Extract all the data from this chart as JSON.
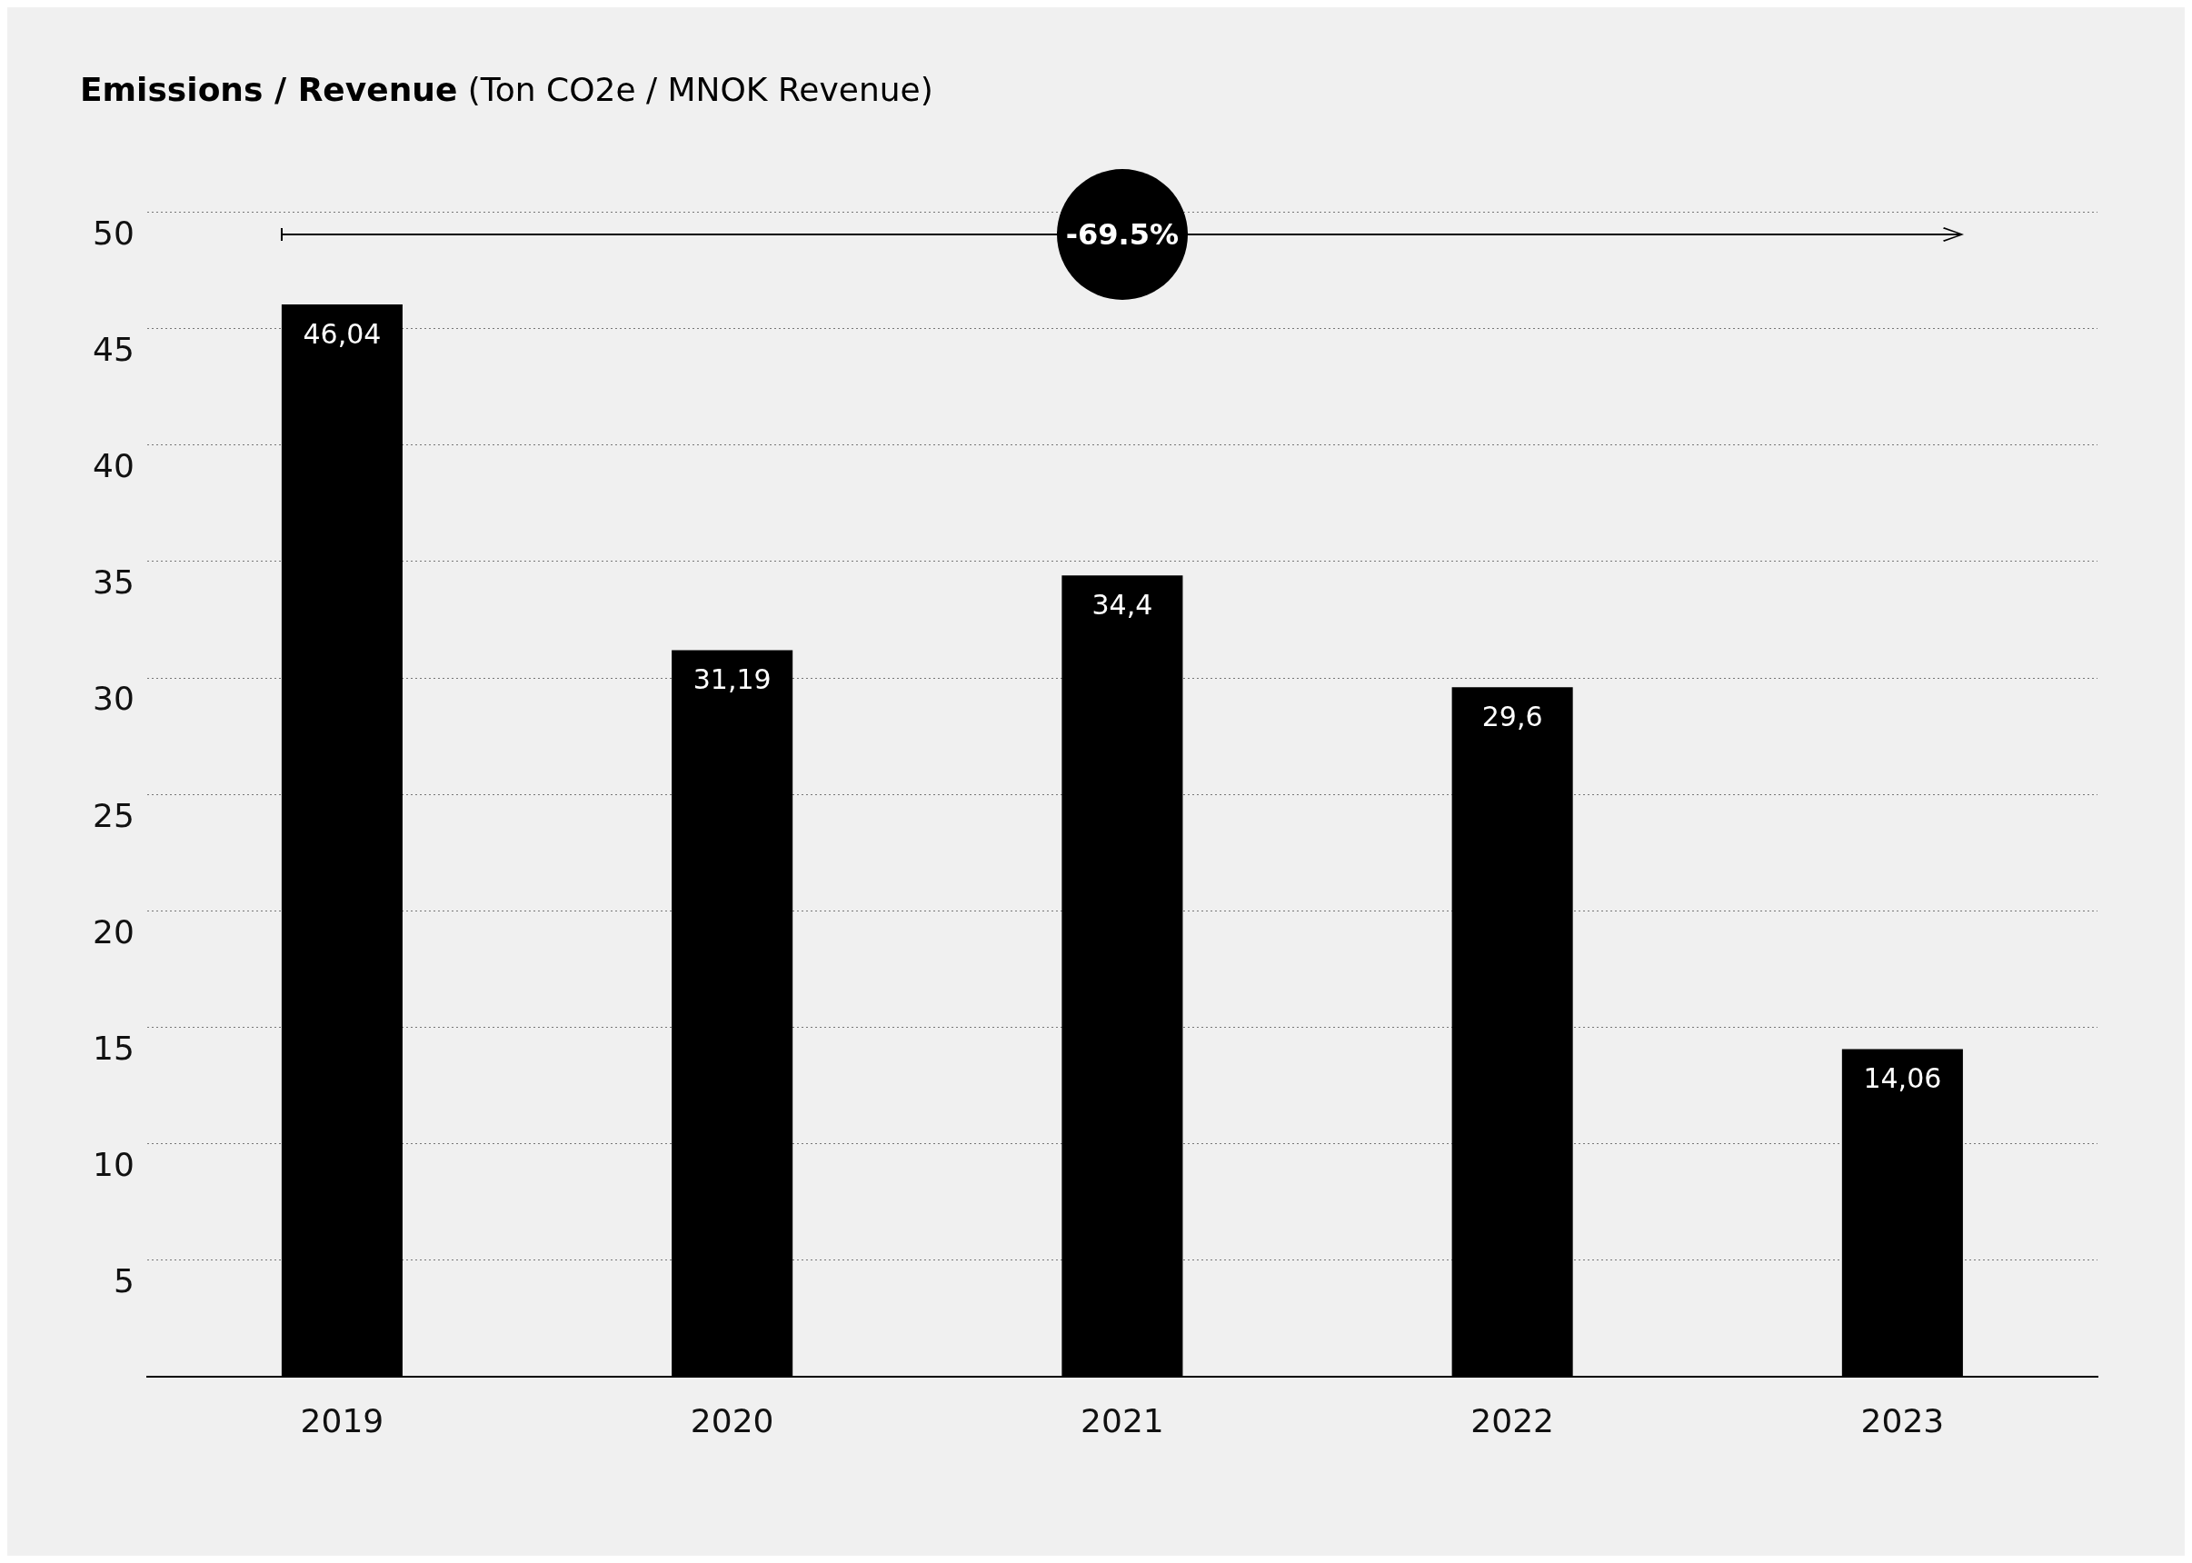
{
  "chart_data": {
    "type": "bar",
    "title": "Emissions / Revenue",
    "subtitle": "(Ton CO2e / MNOK Revenue)",
    "categories": [
      "2019",
      "2020",
      "2021",
      "2022",
      "2023"
    ],
    "values": [
      46.04,
      31.19,
      34.4,
      29.6,
      14.06
    ],
    "value_labels": [
      "46,04",
      "31,19",
      "34,4",
      "29,6",
      "14,06"
    ],
    "color": "#000000",
    "ylim": [
      0,
      50
    ],
    "yticks": [
      {
        "value": 0,
        "label": null
      },
      5,
      10,
      15,
      20,
      25,
      30,
      35,
      40,
      45,
      50
    ],
    "grid": "y",
    "legend": false,
    "annotations": [
      "-69.5%"
    ]
  }
}
